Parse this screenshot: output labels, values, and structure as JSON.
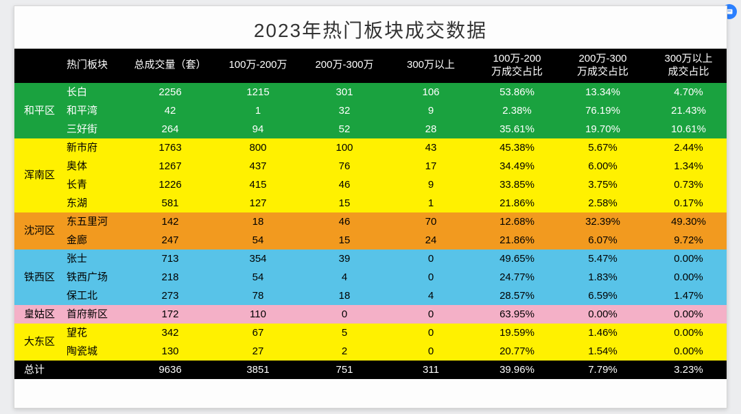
{
  "title": "2023年热门板块成交数据",
  "headers": [
    "热门板块",
    "总成交量（套）",
    "100万-200万",
    "200万-300万",
    "300万以上",
    "100万-200\n万成交占比",
    "200万-300\n万成交占比",
    "300万以上\n成交占比"
  ],
  "total_label": "总计",
  "groups": [
    {
      "district": "和平区",
      "color": "#1aa23f",
      "rows": [
        {
          "area": "长白",
          "total": "2256",
          "v1": "1215",
          "v2": "301",
          "v3": "106",
          "p1": "53.86%",
          "p2": "13.34%",
          "p3": "4.70%"
        },
        {
          "area": "和平湾",
          "total": "42",
          "v1": "1",
          "v2": "32",
          "v3": "9",
          "p1": "2.38%",
          "p2": "76.19%",
          "p3": "21.43%"
        },
        {
          "area": "三好街",
          "total": "264",
          "v1": "94",
          "v2": "52",
          "v3": "28",
          "p1": "35.61%",
          "p2": "19.70%",
          "p3": "10.61%"
        }
      ]
    },
    {
      "district": "浑南区",
      "color": "#fff100",
      "text": "#000",
      "rows": [
        {
          "area": "新市府",
          "total": "1763",
          "v1": "800",
          "v2": "100",
          "v3": "43",
          "p1": "45.38%",
          "p2": "5.67%",
          "p3": "2.44%"
        },
        {
          "area": "奥体",
          "total": "1267",
          "v1": "437",
          "v2": "76",
          "v3": "17",
          "p1": "34.49%",
          "p2": "6.00%",
          "p3": "1.34%"
        },
        {
          "area": "长青",
          "total": "1226",
          "v1": "415",
          "v2": "46",
          "v3": "9",
          "p1": "33.85%",
          "p2": "3.75%",
          "p3": "0.73%"
        },
        {
          "area": "东湖",
          "total": "581",
          "v1": "127",
          "v2": "15",
          "v3": "1",
          "p1": "21.86%",
          "p2": "2.58%",
          "p3": "0.17%"
        }
      ]
    },
    {
      "district": "沈河区",
      "color": "#f29a1f",
      "text": "#000",
      "rows": [
        {
          "area": "东五里河",
          "total": "142",
          "v1": "18",
          "v2": "46",
          "v3": "70",
          "p1": "12.68%",
          "p2": "32.39%",
          "p3": "49.30%"
        },
        {
          "area": "金廊",
          "total": "247",
          "v1": "54",
          "v2": "15",
          "v3": "24",
          "p1": "21.86%",
          "p2": "6.07%",
          "p3": "9.72%"
        }
      ]
    },
    {
      "district": "铁西区",
      "color": "#58c3e8",
      "text": "#000",
      "rows": [
        {
          "area": "张士",
          "total": "713",
          "v1": "354",
          "v2": "39",
          "v3": "0",
          "p1": "49.65%",
          "p2": "5.47%",
          "p3": "0.00%"
        },
        {
          "area": "铁西广场",
          "total": "218",
          "v1": "54",
          "v2": "4",
          "v3": "0",
          "p1": "24.77%",
          "p2": "1.83%",
          "p3": "0.00%"
        },
        {
          "area": "保工北",
          "total": "273",
          "v1": "78",
          "v2": "18",
          "v3": "4",
          "p1": "28.57%",
          "p2": "6.59%",
          "p3": "1.47%"
        }
      ]
    },
    {
      "district": "皇姑区",
      "color": "#f4b0c7",
      "text": "#000",
      "rows": [
        {
          "area": "首府新区",
          "total": "172",
          "v1": "110",
          "v2": "0",
          "v3": "0",
          "p1": "63.95%",
          "p2": "0.00%",
          "p3": "0.00%"
        }
      ]
    },
    {
      "district": "大东区",
      "color": "#fff100",
      "text": "#000",
      "rows": [
        {
          "area": "望花",
          "total": "342",
          "v1": "67",
          "v2": "5",
          "v3": "0",
          "p1": "19.59%",
          "p2": "1.46%",
          "p3": "0.00%"
        },
        {
          "area": "陶瓷城",
          "total": "130",
          "v1": "27",
          "v2": "2",
          "v3": "0",
          "p1": "20.77%",
          "p2": "1.54%",
          "p3": "0.00%"
        }
      ]
    }
  ],
  "totals": {
    "total": "9636",
    "v1": "3851",
    "v2": "751",
    "v3": "311",
    "p1": "39.96%",
    "p2": "7.79%",
    "p3": "3.23%"
  },
  "colors": {
    "header": "#000000",
    "default_text": "#ffffff"
  }
}
